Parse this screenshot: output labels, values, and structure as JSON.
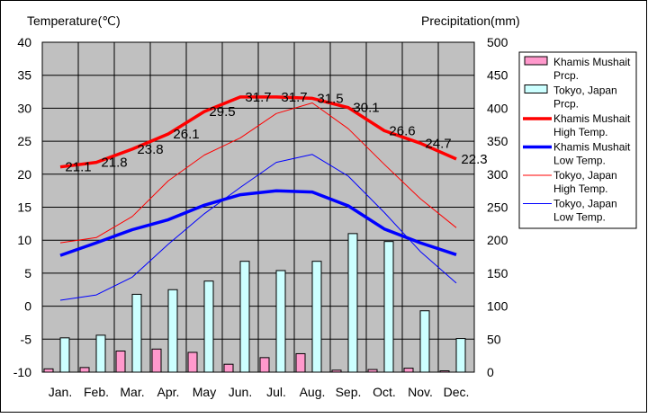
{
  "chart_data": {
    "type": "bar+line",
    "left_axis_title": "Temperature(℃)",
    "right_axis_title": "Precipitation(mm)",
    "left_ylim": [
      -10,
      40
    ],
    "right_ylim": [
      0,
      500
    ],
    "left_ticks": [
      "40",
      "35",
      "30",
      "25",
      "20",
      "15",
      "10",
      "5",
      "0",
      "-5",
      "-10"
    ],
    "right_ticks": [
      "500",
      "450",
      "400",
      "350",
      "300",
      "250",
      "200",
      "150",
      "100",
      "50",
      "0"
    ],
    "categories": [
      "Jan.",
      "Feb.",
      "Mar.",
      "Apr.",
      "May",
      "Jun.",
      "Jul.",
      "Aug.",
      "Sep.",
      "Oct.",
      "Nov.",
      "Dec."
    ],
    "grid": true,
    "plot_background": "#c0c0c0",
    "legend_position": "right",
    "bar_series": [
      {
        "name": "Khamis Mushait Prcp.",
        "color": "#ff99cc",
        "values": [
          5,
          7,
          32,
          35,
          30,
          12,
          22,
          28,
          3,
          4,
          6,
          2
        ]
      },
      {
        "name": "Tokyo, Japan Prcp.",
        "color": "#ccffff",
        "values": [
          52,
          56,
          118,
          125,
          138,
          168,
          154,
          168,
          210,
          198,
          93,
          51
        ]
      }
    ],
    "line_series": [
      {
        "name": "Khamis Mushait High Temp.",
        "color": "#ff0000",
        "width": "thick",
        "values": [
          21.1,
          21.8,
          23.8,
          26.1,
          29.5,
          31.7,
          31.7,
          31.5,
          30.1,
          26.6,
          24.7,
          22.3
        ],
        "labels": [
          "21.1",
          "21.8",
          "23.8",
          "26.1",
          "29.5",
          "31.7",
          "31.7",
          "31.5",
          "30.1",
          "26.6",
          "24.7",
          "22.3"
        ]
      },
      {
        "name": "Khamis Mushait Low Temp.",
        "color": "#0000ff",
        "width": "thick",
        "values": [
          7.7,
          9.6,
          11.6,
          13.1,
          15.3,
          16.9,
          17.5,
          17.3,
          15.2,
          11.7,
          9.6,
          7.8
        ]
      },
      {
        "name": "Tokyo, Japan High Temp.",
        "color": "#ff0000",
        "width": "thin",
        "values": [
          9.6,
          10.4,
          13.6,
          19.0,
          22.9,
          25.5,
          29.2,
          30.8,
          26.9,
          21.5,
          16.3,
          11.9
        ]
      },
      {
        "name": "Tokyo, Japan Low Temp.",
        "color": "#0000ff",
        "width": "thin",
        "values": [
          0.9,
          1.7,
          4.4,
          9.4,
          14.0,
          18.0,
          21.8,
          23.0,
          19.7,
          14.2,
          8.3,
          3.5
        ]
      }
    ],
    "legend": [
      {
        "label1": "Khamis Mushait",
        "label2": "Prcp.",
        "kind": "bar",
        "color": "#ff99cc"
      },
      {
        "label1": "Tokyo, Japan",
        "label2": "Prcp.",
        "kind": "bar",
        "color": "#ccffff"
      },
      {
        "label1": "Khamis Mushait",
        "label2": "High Temp.",
        "kind": "line",
        "color": "#ff0000",
        "thick": true
      },
      {
        "label1": "Khamis Mushait",
        "label2": "Low Temp.",
        "kind": "line",
        "color": "#0000ff",
        "thick": true
      },
      {
        "label1": "Tokyo, Japan",
        "label2": "High Temp.",
        "kind": "line",
        "color": "#ff0000",
        "thick": false
      },
      {
        "label1": "Tokyo, Japan",
        "label2": "Low Temp.",
        "kind": "line",
        "color": "#0000ff",
        "thick": false
      }
    ]
  }
}
